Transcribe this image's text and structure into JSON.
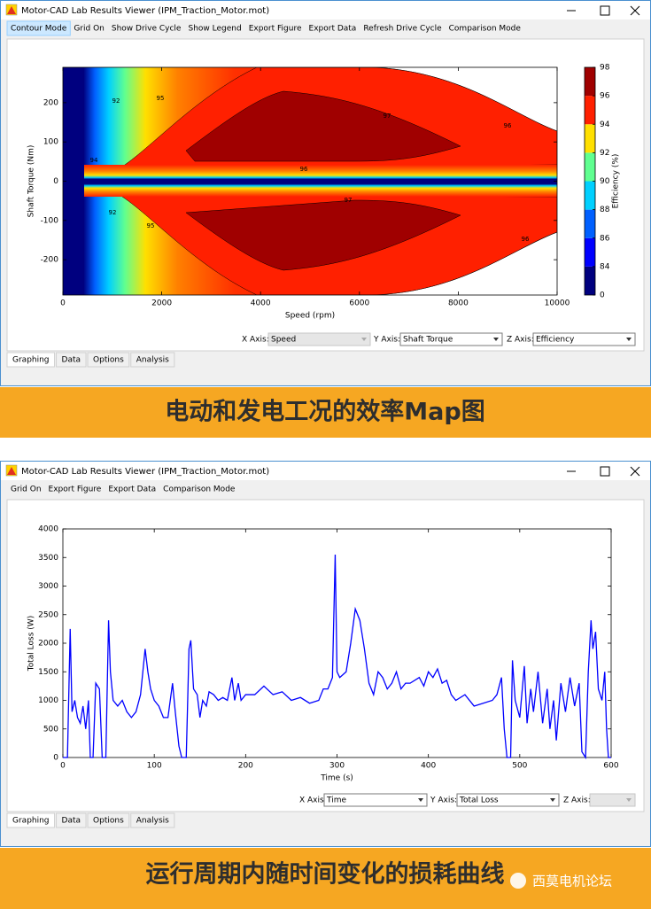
{
  "windows": [
    {
      "title": "Motor-CAD Lab Results Viewer (IPM_Traction_Motor.mot)",
      "menu": [
        {
          "label": "Contour Mode",
          "active": true
        },
        {
          "label": "Grid On"
        },
        {
          "label": "Show Drive Cycle"
        },
        {
          "label": "Show Legend",
          "enabled": false
        },
        {
          "label": "Export Figure"
        },
        {
          "label": "Export Data"
        },
        {
          "label": "Refresh Drive Cycle"
        },
        {
          "label": "Comparison Mode"
        }
      ],
      "chart_data": {
        "type": "contour",
        "xlabel": "Speed (rpm)",
        "ylabel": "Shaft Torque (Nm)",
        "xlim": [
          0,
          10000
        ],
        "ylim": [
          -290,
          290
        ],
        "xticks": [
          0,
          2000,
          4000,
          6000,
          8000,
          10000
        ],
        "yticks": [
          -200,
          -100,
          0,
          100,
          200
        ],
        "colorbar": {
          "label": "Efficiency (%)",
          "ticks": [
            0,
            84,
            86,
            88,
            90,
            92,
            94,
            96,
            98
          ],
          "colors": [
            "#00007f",
            "#0000ff",
            "#0060ff",
            "#00d0ff",
            "#60ff90",
            "#ffe000",
            "#ff2000",
            "#a00000"
          ]
        },
        "contour_labels": [
          92,
          95,
          97,
          96,
          94,
          96,
          97,
          95,
          92,
          96
        ]
      },
      "axis_selectors": [
        {
          "label": "X Axis:",
          "value": "Speed",
          "enabled": false
        },
        {
          "label": "Y Axis:",
          "value": "Shaft Torque"
        },
        {
          "label": "Z Axis:",
          "value": "Efficiency"
        }
      ],
      "tabs": [
        {
          "label": "Graphing",
          "active": true
        },
        {
          "label": "Data"
        },
        {
          "label": "Options"
        },
        {
          "label": "Analysis"
        }
      ]
    },
    {
      "title": "Motor-CAD Lab Results Viewer (IPM_Traction_Motor.mot)",
      "menu": [
        {
          "label": "Grid On"
        },
        {
          "label": "Export Figure"
        },
        {
          "label": "Export Data"
        },
        {
          "label": "Comparison Mode"
        }
      ],
      "chart_data": {
        "type": "line",
        "xlabel": "Time (s)",
        "ylabel": "Total Loss (W)",
        "color": "#0000ff",
        "xlim": [
          0,
          600
        ],
        "ylim": [
          0,
          4000
        ],
        "xticks": [
          0,
          100,
          200,
          300,
          400,
          500,
          600
        ],
        "yticks": [
          0,
          500,
          1000,
          1500,
          2000,
          2500,
          3000,
          3500,
          4000
        ],
        "x": [
          0,
          5,
          8,
          10,
          13,
          16,
          19,
          22,
          25,
          28,
          30,
          33,
          36,
          40,
          43,
          47,
          50,
          52,
          55,
          60,
          65,
          70,
          75,
          80,
          85,
          90,
          93,
          96,
          100,
          105,
          110,
          115,
          120,
          123,
          127,
          130,
          135,
          138,
          140,
          143,
          147,
          150,
          153,
          157,
          160,
          165,
          170,
          175,
          180,
          185,
          188,
          192,
          195,
          200,
          210,
          220,
          230,
          240,
          250,
          260,
          270,
          280,
          285,
          290,
          295,
          298,
          300,
          303,
          310,
          315,
          320,
          325,
          330,
          335,
          340,
          345,
          350,
          355,
          360,
          365,
          370,
          375,
          380,
          390,
          395,
          400,
          405,
          410,
          415,
          420,
          425,
          430,
          440,
          450,
          460,
          470,
          475,
          480,
          483,
          486,
          490,
          492,
          495,
          500,
          505,
          508,
          512,
          515,
          520,
          525,
          530,
          533,
          537,
          540,
          545,
          550,
          555,
          560,
          565,
          568,
          572,
          575,
          578,
          580,
          583,
          586,
          590,
          593,
          595,
          597,
          600
        ],
        "values": [
          0,
          0,
          2250,
          800,
          1000,
          700,
          600,
          900,
          500,
          1000,
          0,
          0,
          1300,
          1200,
          0,
          0,
          2400,
          1500,
          1000,
          900,
          1000,
          800,
          700,
          800,
          1100,
          1900,
          1500,
          1200,
          1000,
          900,
          700,
          700,
          1300,
          800,
          200,
          0,
          0,
          1900,
          2050,
          1200,
          1100,
          700,
          1000,
          900,
          1150,
          1100,
          1000,
          1050,
          1000,
          1400,
          1000,
          1300,
          1000,
          1100,
          1100,
          1250,
          1100,
          1150,
          1000,
          1050,
          950,
          1000,
          1200,
          1200,
          1400,
          3550,
          1500,
          1400,
          1500,
          2000,
          2600,
          2400,
          1900,
          1300,
          1100,
          1500,
          1400,
          1200,
          1300,
          1500,
          1200,
          1300,
          1300,
          1400,
          1250,
          1500,
          1400,
          1550,
          1300,
          1350,
          1100,
          1000,
          1100,
          900,
          950,
          1000,
          1100,
          1400,
          500,
          0,
          0,
          1700,
          1000,
          700,
          1600,
          600,
          1200,
          800,
          1500,
          600,
          1200,
          500,
          1000,
          300,
          1300,
          800,
          1400,
          900,
          1300,
          100,
          0,
          1500,
          2400,
          1900,
          2200,
          1200,
          1000,
          1500,
          500,
          0,
          0
        ]
      },
      "axis_selectors": [
        {
          "label": "X Axis:",
          "value": "Time"
        },
        {
          "label": "Y Axis:",
          "value": "Total Loss"
        },
        {
          "label": "Z Axis:",
          "enabled": false
        }
      ],
      "tabs": [
        {
          "label": "Graphing",
          "active": true
        },
        {
          "label": "Data"
        },
        {
          "label": "Options"
        },
        {
          "label": "Analysis"
        }
      ]
    }
  ],
  "banners": [
    "电动和发电工况的效率Map图",
    "运行周期内随时间变化的损耗曲线"
  ],
  "watermark": "西莫电机论坛"
}
